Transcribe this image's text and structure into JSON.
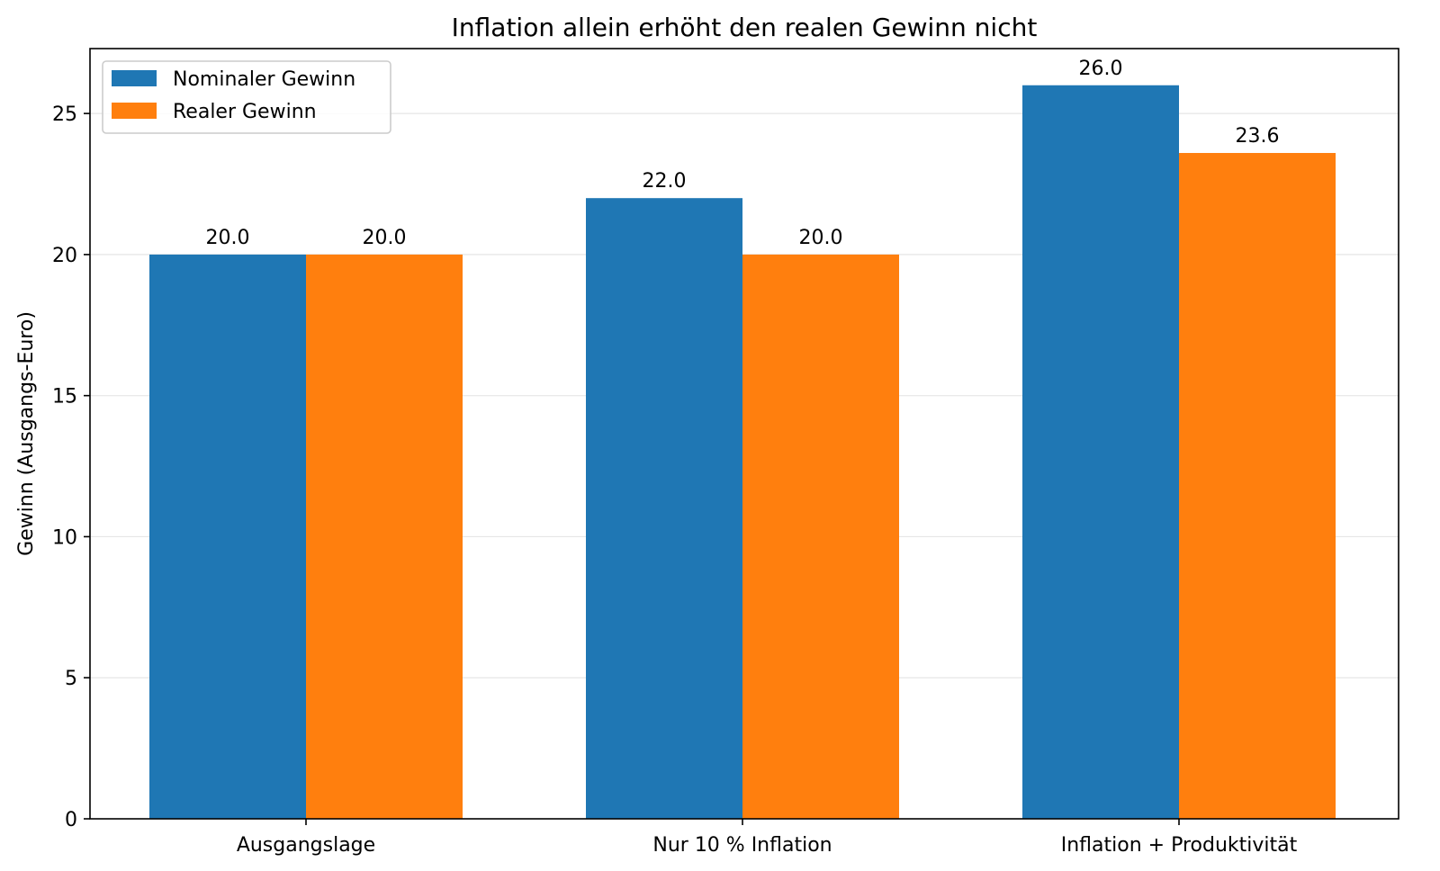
{
  "chart_data": {
    "type": "bar",
    "title": "Inflation allein erhöht den realen Gewinn nicht",
    "xlabel": "",
    "ylabel": "Gewinn (Ausgangs-Euro)",
    "categories": [
      "Ausgangslage",
      "Nur 10 % Inflation",
      "Inflation + Produktivität"
    ],
    "series": [
      {
        "name": "Nominaler Gewinn",
        "color": "#1f77b4",
        "values": [
          20.0,
          22.0,
          26.0
        ],
        "labels": [
          "20.0",
          "22.0",
          "26.0"
        ]
      },
      {
        "name": "Realer Gewinn",
        "color": "#ff7f0e",
        "values": [
          20.0,
          20.0,
          23.6
        ],
        "labels": [
          "20.0",
          "20.0",
          "23.6"
        ]
      }
    ],
    "ylim": [
      0,
      27.3
    ],
    "yticks": [
      0,
      5,
      10,
      15,
      20,
      25
    ],
    "grid": "y",
    "legend": "top-left"
  }
}
